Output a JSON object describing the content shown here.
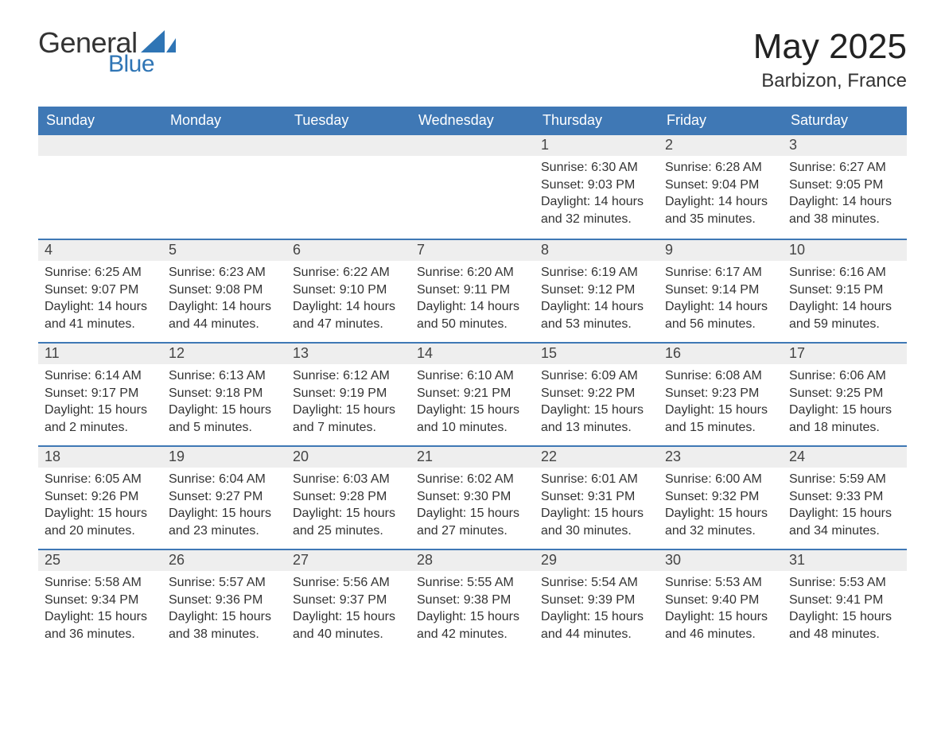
{
  "brand": {
    "word1": "General",
    "word2": "Blue",
    "text_color": "#333333",
    "accent_color": "#2f75b5",
    "sail_color": "#2f75b5"
  },
  "title": {
    "month_year": "May 2025",
    "location": "Barbizon, France",
    "title_fontsize": 44,
    "location_fontsize": 24,
    "text_color": "#222222"
  },
  "calendar": {
    "header_bg": "#3f78b5",
    "header_text_color": "#ffffff",
    "row_divider_color": "#3f78b5",
    "daynum_bg": "#eeeeee",
    "cell_text_color": "#333333",
    "days_of_week": [
      "Sunday",
      "Monday",
      "Tuesday",
      "Wednesday",
      "Thursday",
      "Friday",
      "Saturday"
    ],
    "rows": [
      [
        {
          "blank": true
        },
        {
          "blank": true
        },
        {
          "blank": true
        },
        {
          "blank": true
        },
        {
          "day": "1",
          "sunrise": "6:30 AM",
          "sunset": "9:03 PM",
          "daylight": "14 hours and 32 minutes."
        },
        {
          "day": "2",
          "sunrise": "6:28 AM",
          "sunset": "9:04 PM",
          "daylight": "14 hours and 35 minutes."
        },
        {
          "day": "3",
          "sunrise": "6:27 AM",
          "sunset": "9:05 PM",
          "daylight": "14 hours and 38 minutes."
        }
      ],
      [
        {
          "day": "4",
          "sunrise": "6:25 AM",
          "sunset": "9:07 PM",
          "daylight": "14 hours and 41 minutes."
        },
        {
          "day": "5",
          "sunrise": "6:23 AM",
          "sunset": "9:08 PM",
          "daylight": "14 hours and 44 minutes."
        },
        {
          "day": "6",
          "sunrise": "6:22 AM",
          "sunset": "9:10 PM",
          "daylight": "14 hours and 47 minutes."
        },
        {
          "day": "7",
          "sunrise": "6:20 AM",
          "sunset": "9:11 PM",
          "daylight": "14 hours and 50 minutes."
        },
        {
          "day": "8",
          "sunrise": "6:19 AM",
          "sunset": "9:12 PM",
          "daylight": "14 hours and 53 minutes."
        },
        {
          "day": "9",
          "sunrise": "6:17 AM",
          "sunset": "9:14 PM",
          "daylight": "14 hours and 56 minutes."
        },
        {
          "day": "10",
          "sunrise": "6:16 AM",
          "sunset": "9:15 PM",
          "daylight": "14 hours and 59 minutes."
        }
      ],
      [
        {
          "day": "11",
          "sunrise": "6:14 AM",
          "sunset": "9:17 PM",
          "daylight": "15 hours and 2 minutes."
        },
        {
          "day": "12",
          "sunrise": "6:13 AM",
          "sunset": "9:18 PM",
          "daylight": "15 hours and 5 minutes."
        },
        {
          "day": "13",
          "sunrise": "6:12 AM",
          "sunset": "9:19 PM",
          "daylight": "15 hours and 7 minutes."
        },
        {
          "day": "14",
          "sunrise": "6:10 AM",
          "sunset": "9:21 PM",
          "daylight": "15 hours and 10 minutes."
        },
        {
          "day": "15",
          "sunrise": "6:09 AM",
          "sunset": "9:22 PM",
          "daylight": "15 hours and 13 minutes."
        },
        {
          "day": "16",
          "sunrise": "6:08 AM",
          "sunset": "9:23 PM",
          "daylight": "15 hours and 15 minutes."
        },
        {
          "day": "17",
          "sunrise": "6:06 AM",
          "sunset": "9:25 PM",
          "daylight": "15 hours and 18 minutes."
        }
      ],
      [
        {
          "day": "18",
          "sunrise": "6:05 AM",
          "sunset": "9:26 PM",
          "daylight": "15 hours and 20 minutes."
        },
        {
          "day": "19",
          "sunrise": "6:04 AM",
          "sunset": "9:27 PM",
          "daylight": "15 hours and 23 minutes."
        },
        {
          "day": "20",
          "sunrise": "6:03 AM",
          "sunset": "9:28 PM",
          "daylight": "15 hours and 25 minutes."
        },
        {
          "day": "21",
          "sunrise": "6:02 AM",
          "sunset": "9:30 PM",
          "daylight": "15 hours and 27 minutes."
        },
        {
          "day": "22",
          "sunrise": "6:01 AM",
          "sunset": "9:31 PM",
          "daylight": "15 hours and 30 minutes."
        },
        {
          "day": "23",
          "sunrise": "6:00 AM",
          "sunset": "9:32 PM",
          "daylight": "15 hours and 32 minutes."
        },
        {
          "day": "24",
          "sunrise": "5:59 AM",
          "sunset": "9:33 PM",
          "daylight": "15 hours and 34 minutes."
        }
      ],
      [
        {
          "day": "25",
          "sunrise": "5:58 AM",
          "sunset": "9:34 PM",
          "daylight": "15 hours and 36 minutes."
        },
        {
          "day": "26",
          "sunrise": "5:57 AM",
          "sunset": "9:36 PM",
          "daylight": "15 hours and 38 minutes."
        },
        {
          "day": "27",
          "sunrise": "5:56 AM",
          "sunset": "9:37 PM",
          "daylight": "15 hours and 40 minutes."
        },
        {
          "day": "28",
          "sunrise": "5:55 AM",
          "sunset": "9:38 PM",
          "daylight": "15 hours and 42 minutes."
        },
        {
          "day": "29",
          "sunrise": "5:54 AM",
          "sunset": "9:39 PM",
          "daylight": "15 hours and 44 minutes."
        },
        {
          "day": "30",
          "sunrise": "5:53 AM",
          "sunset": "9:40 PM",
          "daylight": "15 hours and 46 minutes."
        },
        {
          "day": "31",
          "sunrise": "5:53 AM",
          "sunset": "9:41 PM",
          "daylight": "15 hours and 48 minutes."
        }
      ]
    ],
    "labels": {
      "sunrise_prefix": "Sunrise: ",
      "sunset_prefix": "Sunset: ",
      "daylight_prefix": "Daylight: "
    }
  }
}
